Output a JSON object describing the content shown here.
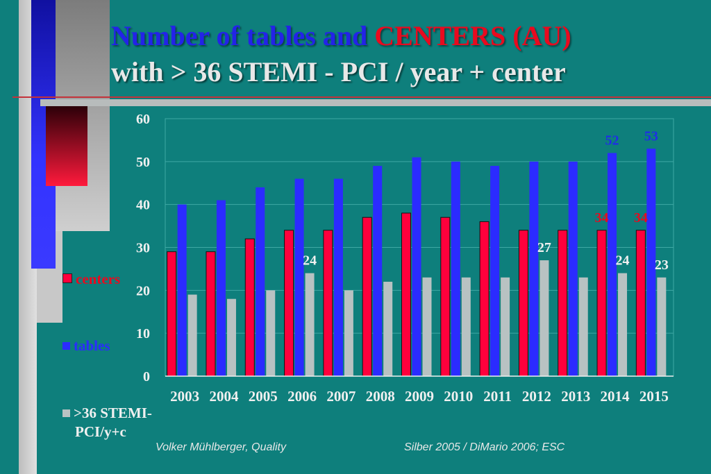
{
  "title": {
    "line1_part1": "Number of tables and ",
    "line1_part2": "CENTERS (AU)",
    "line2": "with > 36 STEMI - PCI / year + center"
  },
  "colors": {
    "background": "#0e7f7c",
    "centers": "#ff003c",
    "tables": "#2b2bff",
    "stemi": "#b8c2c2",
    "label_blue": "#1f2de8",
    "label_red": "#e80a1f",
    "label_white": "#f0f0f0"
  },
  "chart_data": {
    "type": "bar",
    "categories": [
      "2003",
      "2004",
      "2005",
      "2006",
      "2007",
      "2008",
      "2009",
      "2010",
      "2011",
      "2012",
      "2013",
      "2014",
      "2015"
    ],
    "series": [
      {
        "name": "centers",
        "values": [
          29,
          29,
          32,
          34,
          34,
          37,
          38,
          37,
          36,
          34,
          34,
          34,
          34
        ]
      },
      {
        "name": "tables",
        "values": [
          40,
          41,
          44,
          46,
          46,
          49,
          51,
          50,
          49,
          50,
          50,
          52,
          53
        ]
      },
      {
        "name": ">36 STEMI-PCI/y+c",
        "values": [
          19,
          18,
          20,
          24,
          20,
          22,
          23,
          23,
          23,
          27,
          23,
          24,
          23
        ]
      }
    ],
    "ylim": [
      0,
      60
    ],
    "yticks": [
      0,
      10,
      20,
      30,
      40,
      50,
      60
    ],
    "grid": true,
    "legend": "left",
    "data_labels": [
      {
        "series": "centers",
        "category": "2014",
        "value": "34"
      },
      {
        "series": "centers",
        "category": "2015",
        "value": "34"
      },
      {
        "series": "tables",
        "category": "2014",
        "value": "52"
      },
      {
        "series": "tables",
        "category": "2015",
        "value": "53"
      },
      {
        "series": ">36 STEMI-PCI/y+c",
        "category": "2006",
        "value": "24"
      },
      {
        "series": ">36 STEMI-PCI/y+c",
        "category": "2012",
        "value": "27"
      },
      {
        "series": ">36 STEMI-PCI/y+c",
        "category": "2014",
        "value": "24"
      },
      {
        "series": ">36 STEMI-PCI/y+c",
        "category": "2015",
        "value": "23"
      }
    ]
  },
  "legend": {
    "centers": "centers",
    "tables": "tables",
    "stemi_line1": ">36 STEMI-",
    "stemi_line2": "PCI/y+c"
  },
  "footer": {
    "left": "Volker Mühlberger, Quality",
    "right": "Silber 2005 / DiMario 2006; ESC"
  }
}
